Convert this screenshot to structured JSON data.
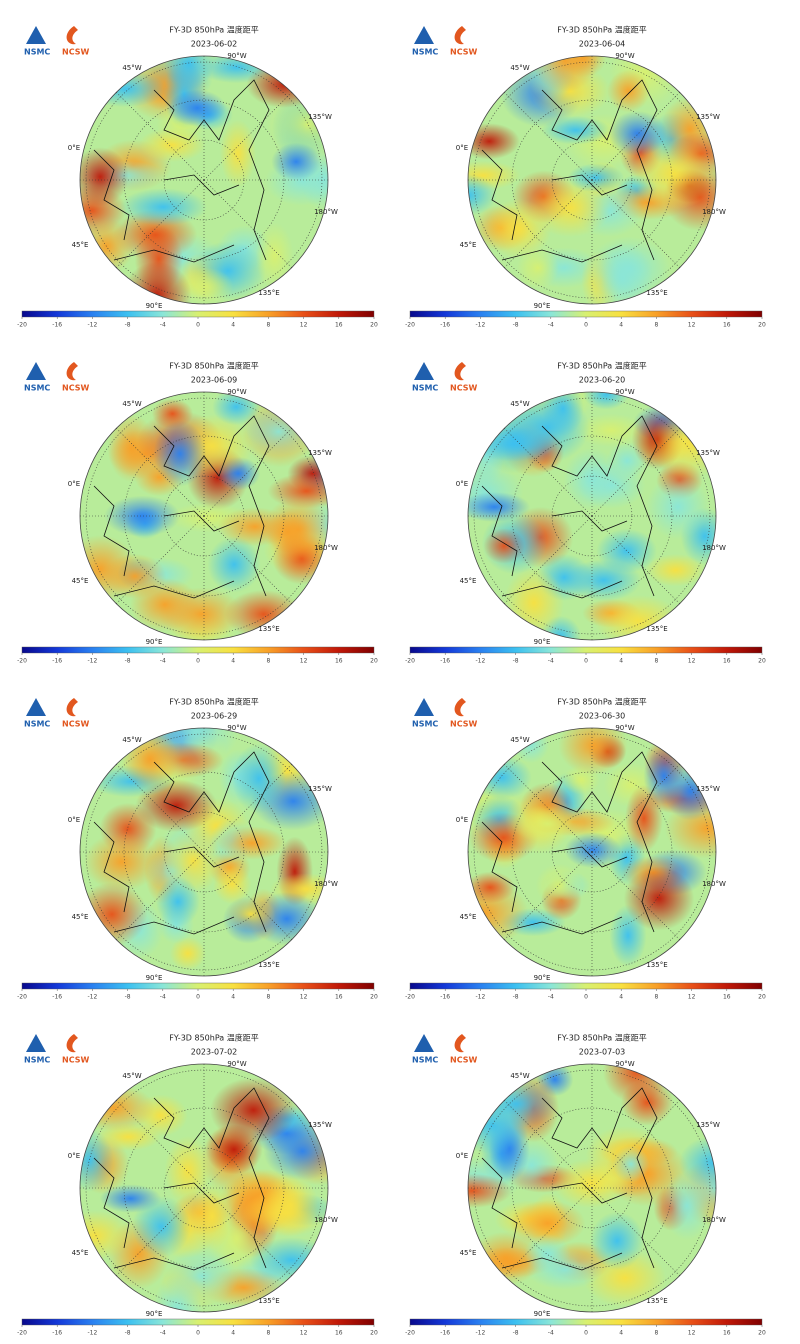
{
  "logos": [
    "NSMC",
    "NCSW"
  ],
  "title": "FY-3D 850hPa 温度距平",
  "longitude_labels": [
    "45°W",
    "90°W",
    "135°W",
    "0°E",
    "180°W",
    "45°E",
    "90°E",
    "135°E"
  ],
  "panels": [
    {
      "date": "2023-06-02"
    },
    {
      "date": "2023-06-04"
    },
    {
      "date": "2023-06-09"
    },
    {
      "date": "2023-06-20"
    },
    {
      "date": "2023-06-29"
    },
    {
      "date": "2023-06-30"
    },
    {
      "date": "2023-07-02"
    },
    {
      "date": "2023-07-03"
    }
  ],
  "colorbar": {
    "lim": [
      -20,
      20
    ],
    "ticks": [
      -20,
      -16,
      -12,
      -8,
      -4,
      0,
      4,
      8,
      12,
      16,
      20
    ],
    "colors": [
      "#08088c",
      "#1438d8",
      "#2a80f0",
      "#3cc0f0",
      "#8ae6d8",
      "#d8f070",
      "#f8e040",
      "#f8a028",
      "#e85018",
      "#c01808",
      "#800000"
    ]
  }
}
